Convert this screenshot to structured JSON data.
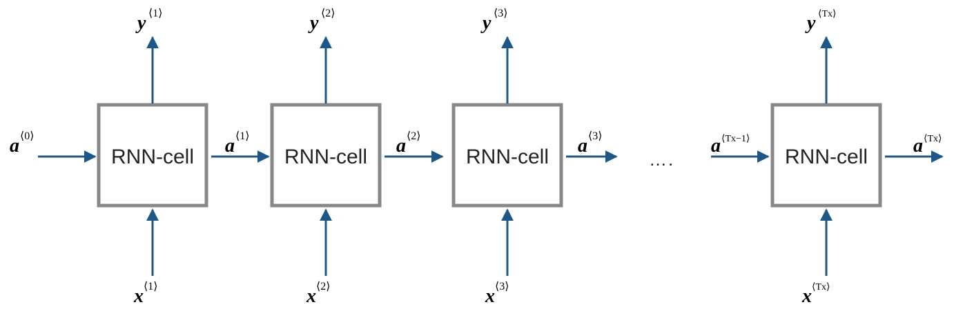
{
  "cells": [
    {
      "label": "RNN-cell"
    },
    {
      "label": "RNN-cell"
    },
    {
      "label": "RNN-cell"
    },
    {
      "label": "RNN-cell"
    }
  ],
  "outputs": [
    {
      "base": "y",
      "sup": "⟨1⟩"
    },
    {
      "base": "y",
      "sup": "⟨2⟩"
    },
    {
      "base": "y",
      "sup": "⟨3⟩"
    },
    {
      "base": "y",
      "sup": "⟨Tx⟩"
    }
  ],
  "inputs": [
    {
      "base": "x",
      "sup": "⟨1⟩"
    },
    {
      "base": "x",
      "sup": "⟨2⟩"
    },
    {
      "base": "x",
      "sup": "⟨3⟩"
    },
    {
      "base": "x",
      "sup": "⟨Tx⟩"
    }
  ],
  "activations": [
    {
      "base": "a",
      "sup": "⟨0⟩"
    },
    {
      "base": "a",
      "sup": "⟨1⟩"
    },
    {
      "base": "a",
      "sup": "⟨2⟩"
    },
    {
      "base": "a",
      "sup": "⟨3⟩"
    },
    {
      "base": "a",
      "sup": "⟨Tx−1⟩"
    },
    {
      "base": "a",
      "sup": "⟨Tx⟩"
    }
  ],
  "ellipsis": "…."
}
